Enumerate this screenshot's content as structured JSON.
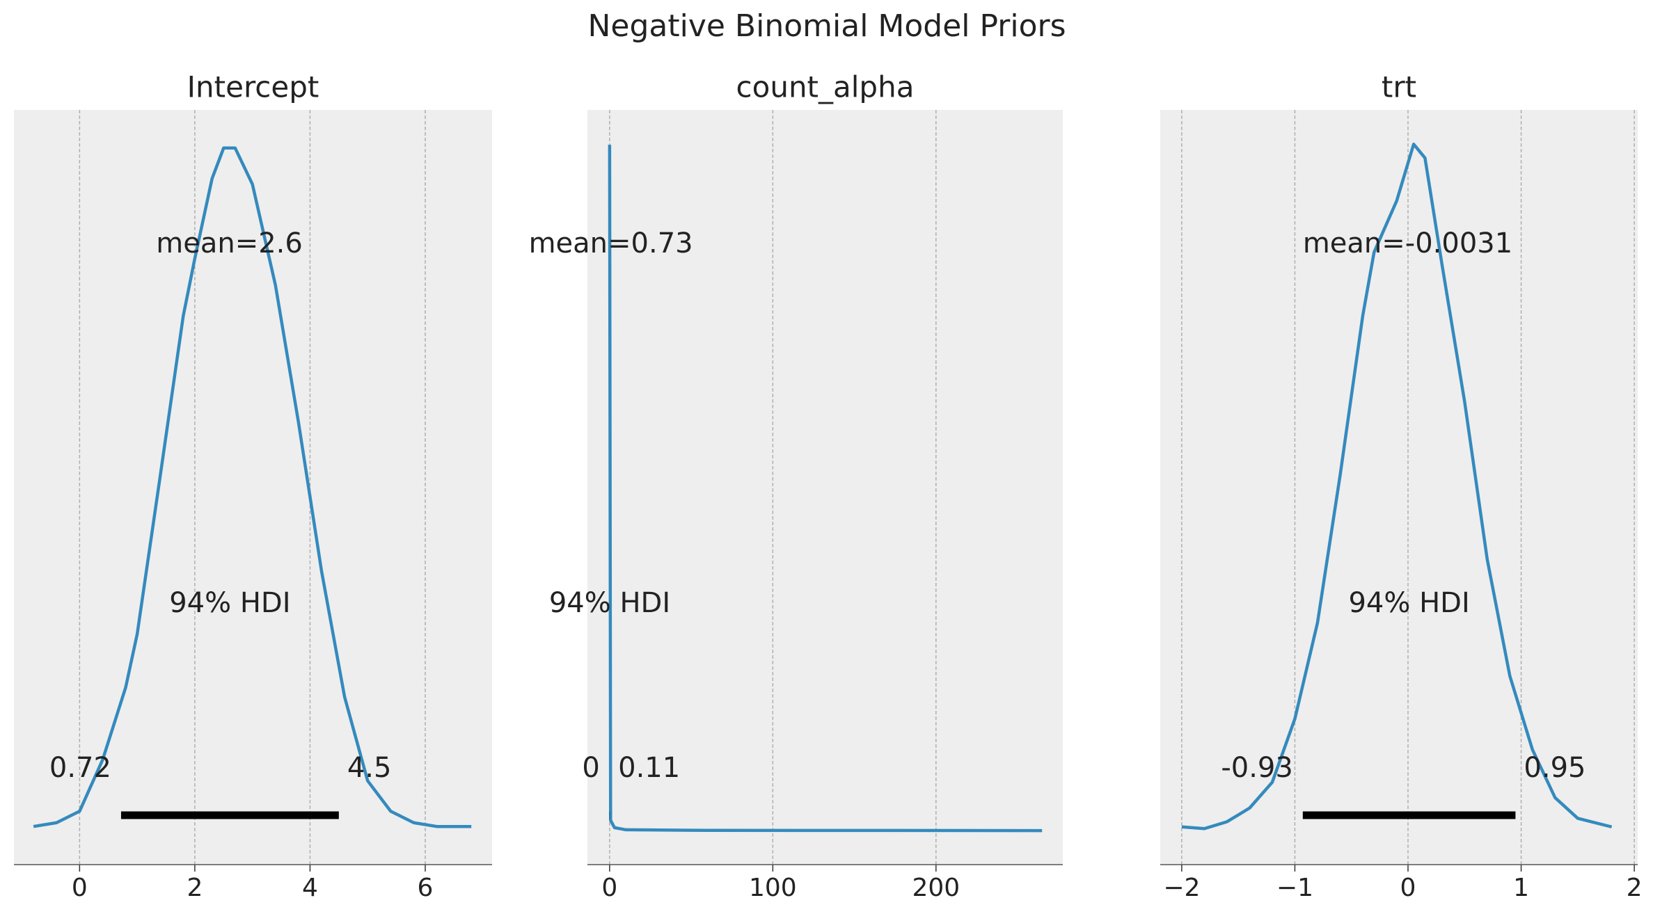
{
  "title": "Negative Binomial Model Priors",
  "chart_data": [
    {
      "type": "line",
      "title": "Intercept",
      "color": "#348abd",
      "grid": true,
      "x": [
        -0.8,
        -0.4,
        0,
        0.4,
        0.8,
        1.0,
        1.4,
        1.8,
        2.0,
        2.3,
        2.5,
        2.7,
        3.0,
        3.4,
        3.8,
        4.2,
        4.6,
        5.0,
        5.4,
        5.8,
        6.2,
        6.8
      ],
      "values": [
        0.002,
        0.004,
        0.01,
        0.037,
        0.075,
        0.103,
        0.186,
        0.27,
        0.3,
        0.342,
        0.358,
        0.358,
        0.339,
        0.286,
        0.214,
        0.136,
        0.07,
        0.026,
        0.01,
        0.004,
        0.002,
        0.002
      ],
      "xlim": [
        -1.14,
        7.16
      ],
      "ylim": [
        -0.018,
        0.378
      ],
      "xticks": [
        0,
        2,
        4,
        6
      ],
      "mean": 2.6,
      "mean_label": "mean=2.6",
      "hdi": [
        0.72,
        4.5
      ],
      "hdi_label": "94% HDI"
    },
    {
      "type": "line",
      "title": "count_alpha",
      "color": "#348abd",
      "grid": true,
      "x": [
        0,
        0.6,
        3,
        10,
        50,
        265
      ],
      "values": [
        0.65,
        0.01,
        0.003,
        0.001,
        0.0005,
        0.0002
      ],
      "xlim": [
        -13.6,
        277.7
      ],
      "ylim": [
        -0.032,
        0.683
      ],
      "xticks": [
        0,
        100,
        200
      ],
      "mean": 0.73,
      "mean_label": "mean=0.73",
      "hdi": [
        0,
        0.11
      ],
      "hdi_label": "94% HDI"
    },
    {
      "type": "line",
      "title": "trt",
      "color": "#348abd",
      "grid": true,
      "x": [
        -2.0,
        -1.8,
        -1.6,
        -1.4,
        -1.2,
        -1.0,
        -0.8,
        -0.6,
        -0.4,
        -0.3,
        -0.1,
        0.05,
        0.15,
        0.3,
        0.5,
        0.7,
        0.9,
        1.1,
        1.3,
        1.5,
        1.8
      ],
      "values": [
        0.002,
        0.001,
        0.005,
        0.013,
        0.028,
        0.065,
        0.121,
        0.207,
        0.3,
        0.337,
        0.367,
        0.4,
        0.392,
        0.33,
        0.25,
        0.158,
        0.09,
        0.047,
        0.019,
        0.007,
        0.002
      ],
      "xlim": [
        -2.19,
        2.03
      ],
      "ylim": [
        -0.02,
        0.42
      ],
      "xticks": [
        {
          "value": -2,
          "label": "−2"
        },
        {
          "value": -1,
          "label": "−1"
        },
        0,
        1,
        2
      ],
      "mean": -0.0031,
      "mean_label": "mean=-0.0031",
      "hdi": [
        -0.93,
        0.95
      ],
      "hdi_label": "94% HDI"
    }
  ]
}
